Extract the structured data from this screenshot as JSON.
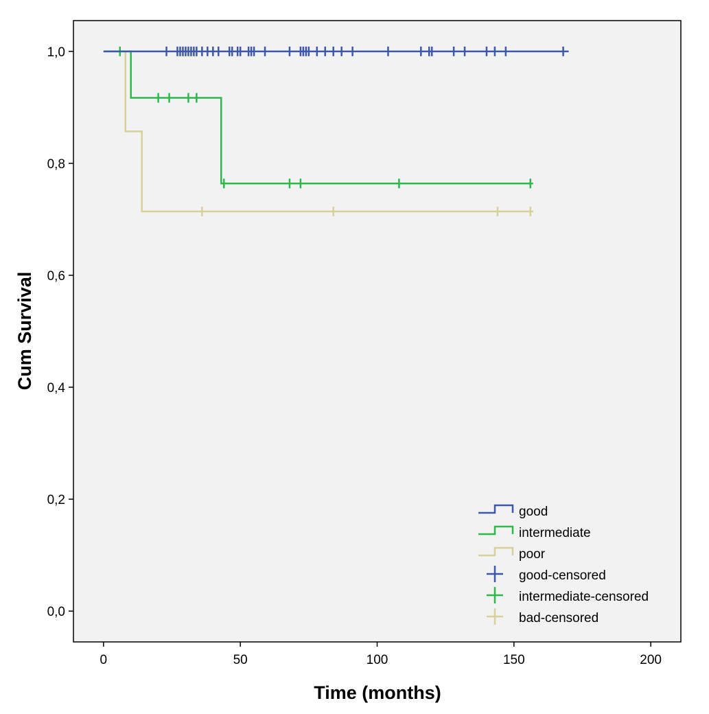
{
  "chart_data": {
    "type": "line",
    "subtype": "kaplan-meier step",
    "xlabel": "Time (months)",
    "ylabel": "Cum Survival",
    "xlim": [
      -11,
      211
    ],
    "ylim": [
      -0.055,
      1.055
    ],
    "xticks": [
      0,
      50,
      100,
      150,
      200
    ],
    "xtick_labels": [
      "0",
      "50",
      "100",
      "150",
      "200"
    ],
    "yticks": [
      0.0,
      0.2,
      0.4,
      0.6,
      0.8,
      1.0
    ],
    "ytick_labels": [
      "0,0",
      "0,2",
      "0,4",
      "0,6",
      "0,8",
      "1,0"
    ],
    "grid": false,
    "background": "#f2f2f2",
    "legend_position": "bottom-right",
    "series": [
      {
        "name": "good",
        "censored_name": "good-censored",
        "color": "#3d57ab",
        "steps": [
          [
            0,
            1.0
          ],
          [
            170,
            1.0
          ]
        ],
        "censored": [
          23,
          27,
          28,
          29,
          30,
          31,
          32,
          33,
          34,
          36,
          38,
          40,
          42,
          46,
          47,
          49,
          50,
          53,
          54,
          55,
          59,
          68,
          72,
          73,
          74,
          75,
          78,
          81,
          84,
          87,
          91,
          104,
          116,
          119,
          120,
          128,
          132,
          140,
          143,
          147,
          168
        ]
      },
      {
        "name": "intermediate",
        "censored_name": "intermediate-censored",
        "color": "#2cb84b",
        "steps": [
          [
            0,
            1.0
          ],
          [
            10,
            0.917
          ],
          [
            43,
            0.764
          ],
          [
            157,
            0.764
          ]
        ],
        "censored": [
          6,
          20,
          24,
          31,
          34,
          44,
          68,
          72,
          108,
          156
        ]
      },
      {
        "name": "poor",
        "censored_name": "bad-censored",
        "color": "#d6d09c",
        "steps": [
          [
            0,
            1.0
          ],
          [
            8,
            0.857
          ],
          [
            14,
            0.714
          ],
          [
            157,
            0.714
          ]
        ],
        "censored": [
          36,
          84,
          144,
          156
        ]
      }
    ]
  }
}
